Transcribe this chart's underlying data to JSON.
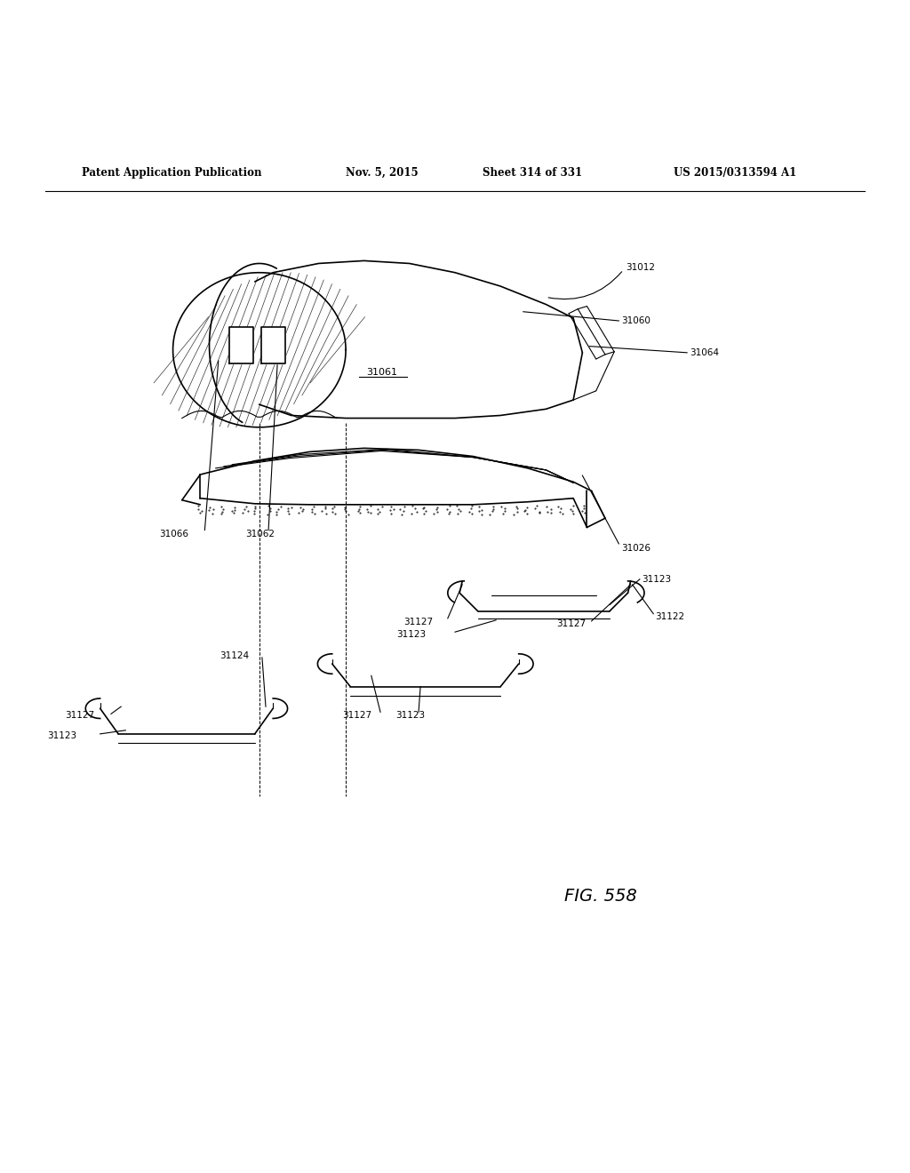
{
  "title_left": "Patent Application Publication",
  "title_mid": "Nov. 5, 2015",
  "title_sheet": "Sheet 314 of 331",
  "title_patent": "US 2015/0313594 A1",
  "fig_label": "FIG. 558",
  "background_color": "#ffffff",
  "line_color": "#000000"
}
